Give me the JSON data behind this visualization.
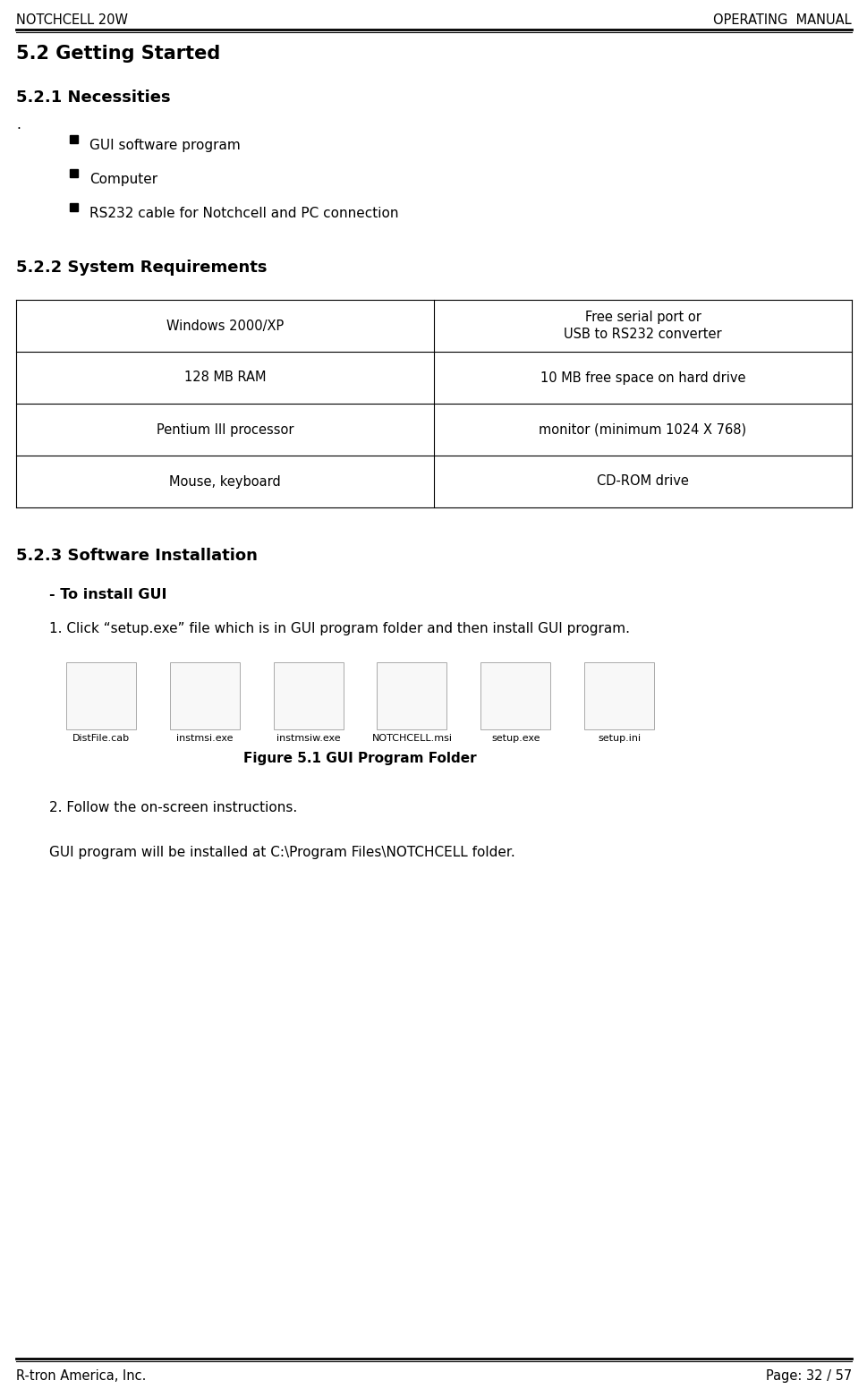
{
  "header_left": "NOTCHCELL 20W",
  "header_right": "OPERATING  MANUAL",
  "footer_left": "R-tron America, Inc.",
  "footer_right": "Page: 32 / 57",
  "section_title": "5.2 Getting Started",
  "subsection1_title": "5.2.1 Necessities",
  "subsection1_dot": ".",
  "bullets": [
    "GUI software program",
    "Computer",
    "RS232 cable for Notchcell and PC connection"
  ],
  "subsection2_title": "5.2.2 System Requirements",
  "table_rows": [
    [
      "Windows 2000/XP",
      "Free serial port or\nUSB to RS232 converter"
    ],
    [
      "128 MB RAM",
      "10 MB free space on hard drive"
    ],
    [
      "Pentium III processor",
      "monitor (minimum 1024 X 768)"
    ],
    [
      "Mouse, keyboard",
      "CD-ROM drive"
    ]
  ],
  "subsection3_title": "5.2.3 Software Installation",
  "install_subtitle": "- To install GUI",
  "step1": "1. Click “setup.exe” file which is in GUI program folder and then install GUI program.",
  "figure_caption": "Figure 5.1 GUI Program Folder",
  "icon_labels": [
    "DistFile.cab",
    "instmsi.exe",
    "instmsiw.exe",
    "NOTCHCELL.msi",
    "setup.exe",
    "setup.ini"
  ],
  "step2": "2. Follow the on-screen instructions.",
  "final_note": "GUI program will be installed at C:\\Program Files\\NOTCHCELL folder.",
  "bg_color": "#ffffff",
  "text_color": "#000000"
}
